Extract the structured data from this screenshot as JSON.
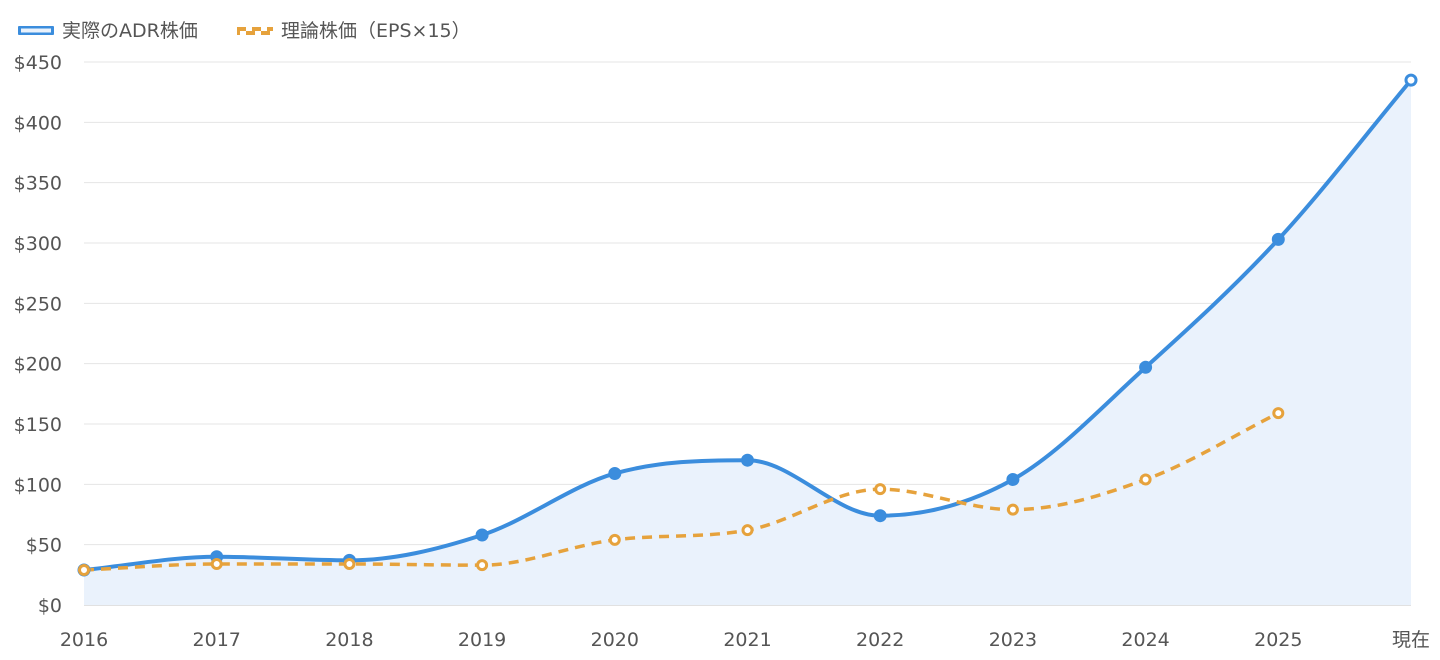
{
  "chart_data": {
    "type": "line",
    "x": [
      "2016",
      "2017",
      "2018",
      "2019",
      "2020",
      "2021",
      "2022",
      "2023",
      "2024",
      "2025",
      "現在"
    ],
    "series": [
      {
        "name": "実際のADR株価",
        "values": [
          29,
          40,
          37,
          58,
          109,
          120,
          74,
          104,
          197,
          303,
          435
        ],
        "color": "#3b8ddd",
        "style": "solid",
        "fill": "#eaf2fc"
      },
      {
        "name": "理論株価（EPS×15）",
        "values": [
          29,
          34,
          34,
          33,
          54,
          62,
          96,
          79,
          104,
          159,
          null
        ],
        "color": "#e6a23c",
        "style": "dashed"
      }
    ],
    "yticks": [
      "$0",
      "$50",
      "$100",
      "$150",
      "$200",
      "$250",
      "$300",
      "$350",
      "$400",
      "$450"
    ],
    "ylim": [
      0,
      450
    ],
    "grid": true,
    "legend": "top-left"
  }
}
